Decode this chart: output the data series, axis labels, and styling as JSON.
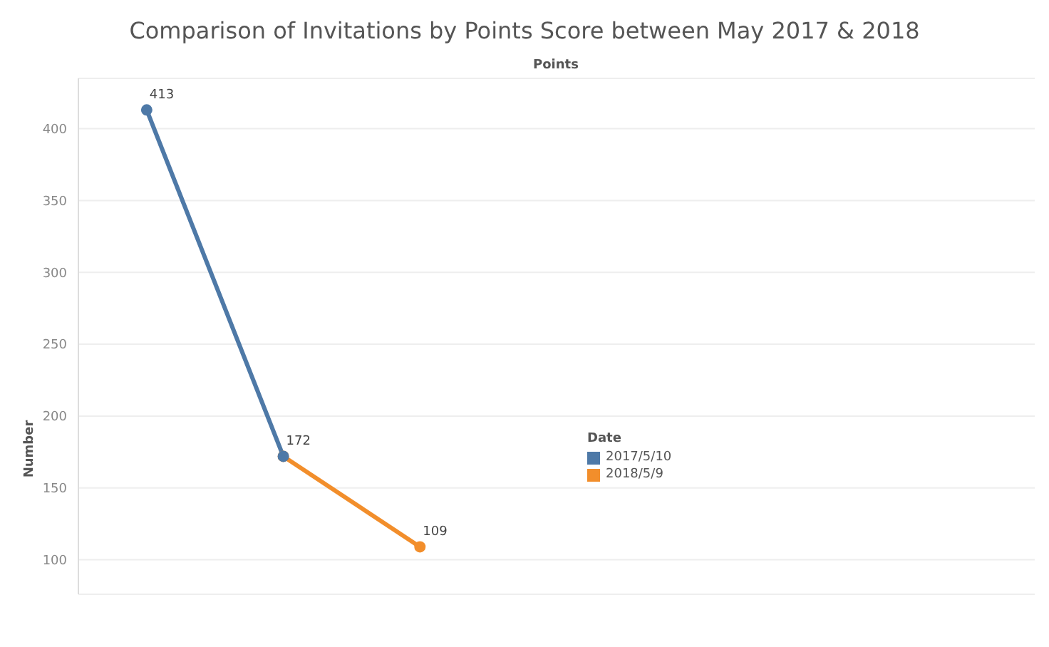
{
  "chart_data": {
    "type": "line",
    "title": "Comparison of Invitations by Points Score between May 2017 & 2018",
    "xlabel": "Points",
    "ylabel": "Number",
    "legend_title": "Date",
    "categories": [
      null,
      null,
      null,
      null,
      null,
      null,
      null
    ],
    "series": [
      {
        "name": "2017/5/10",
        "color": "#4e79a7",
        "values": [
          413,
          172,
          null,
          null,
          null,
          null,
          null
        ],
        "value_labels": [
          "413",
          null,
          null,
          null,
          null,
          null,
          null
        ]
      },
      {
        "name": "2018/5/9",
        "color": "#f28e2b",
        "values": [
          null,
          172,
          109,
          null,
          null,
          null,
          null
        ],
        "value_labels": [
          null,
          "172",
          "109",
          null,
          null,
          null,
          null
        ]
      }
    ],
    "ylim": [
      76,
      435
    ],
    "yticks": [
      100,
      150,
      200,
      250,
      300,
      350,
      400
    ],
    "grid": "y",
    "legend": "right",
    "marker": "circle",
    "line_style": "solid"
  }
}
